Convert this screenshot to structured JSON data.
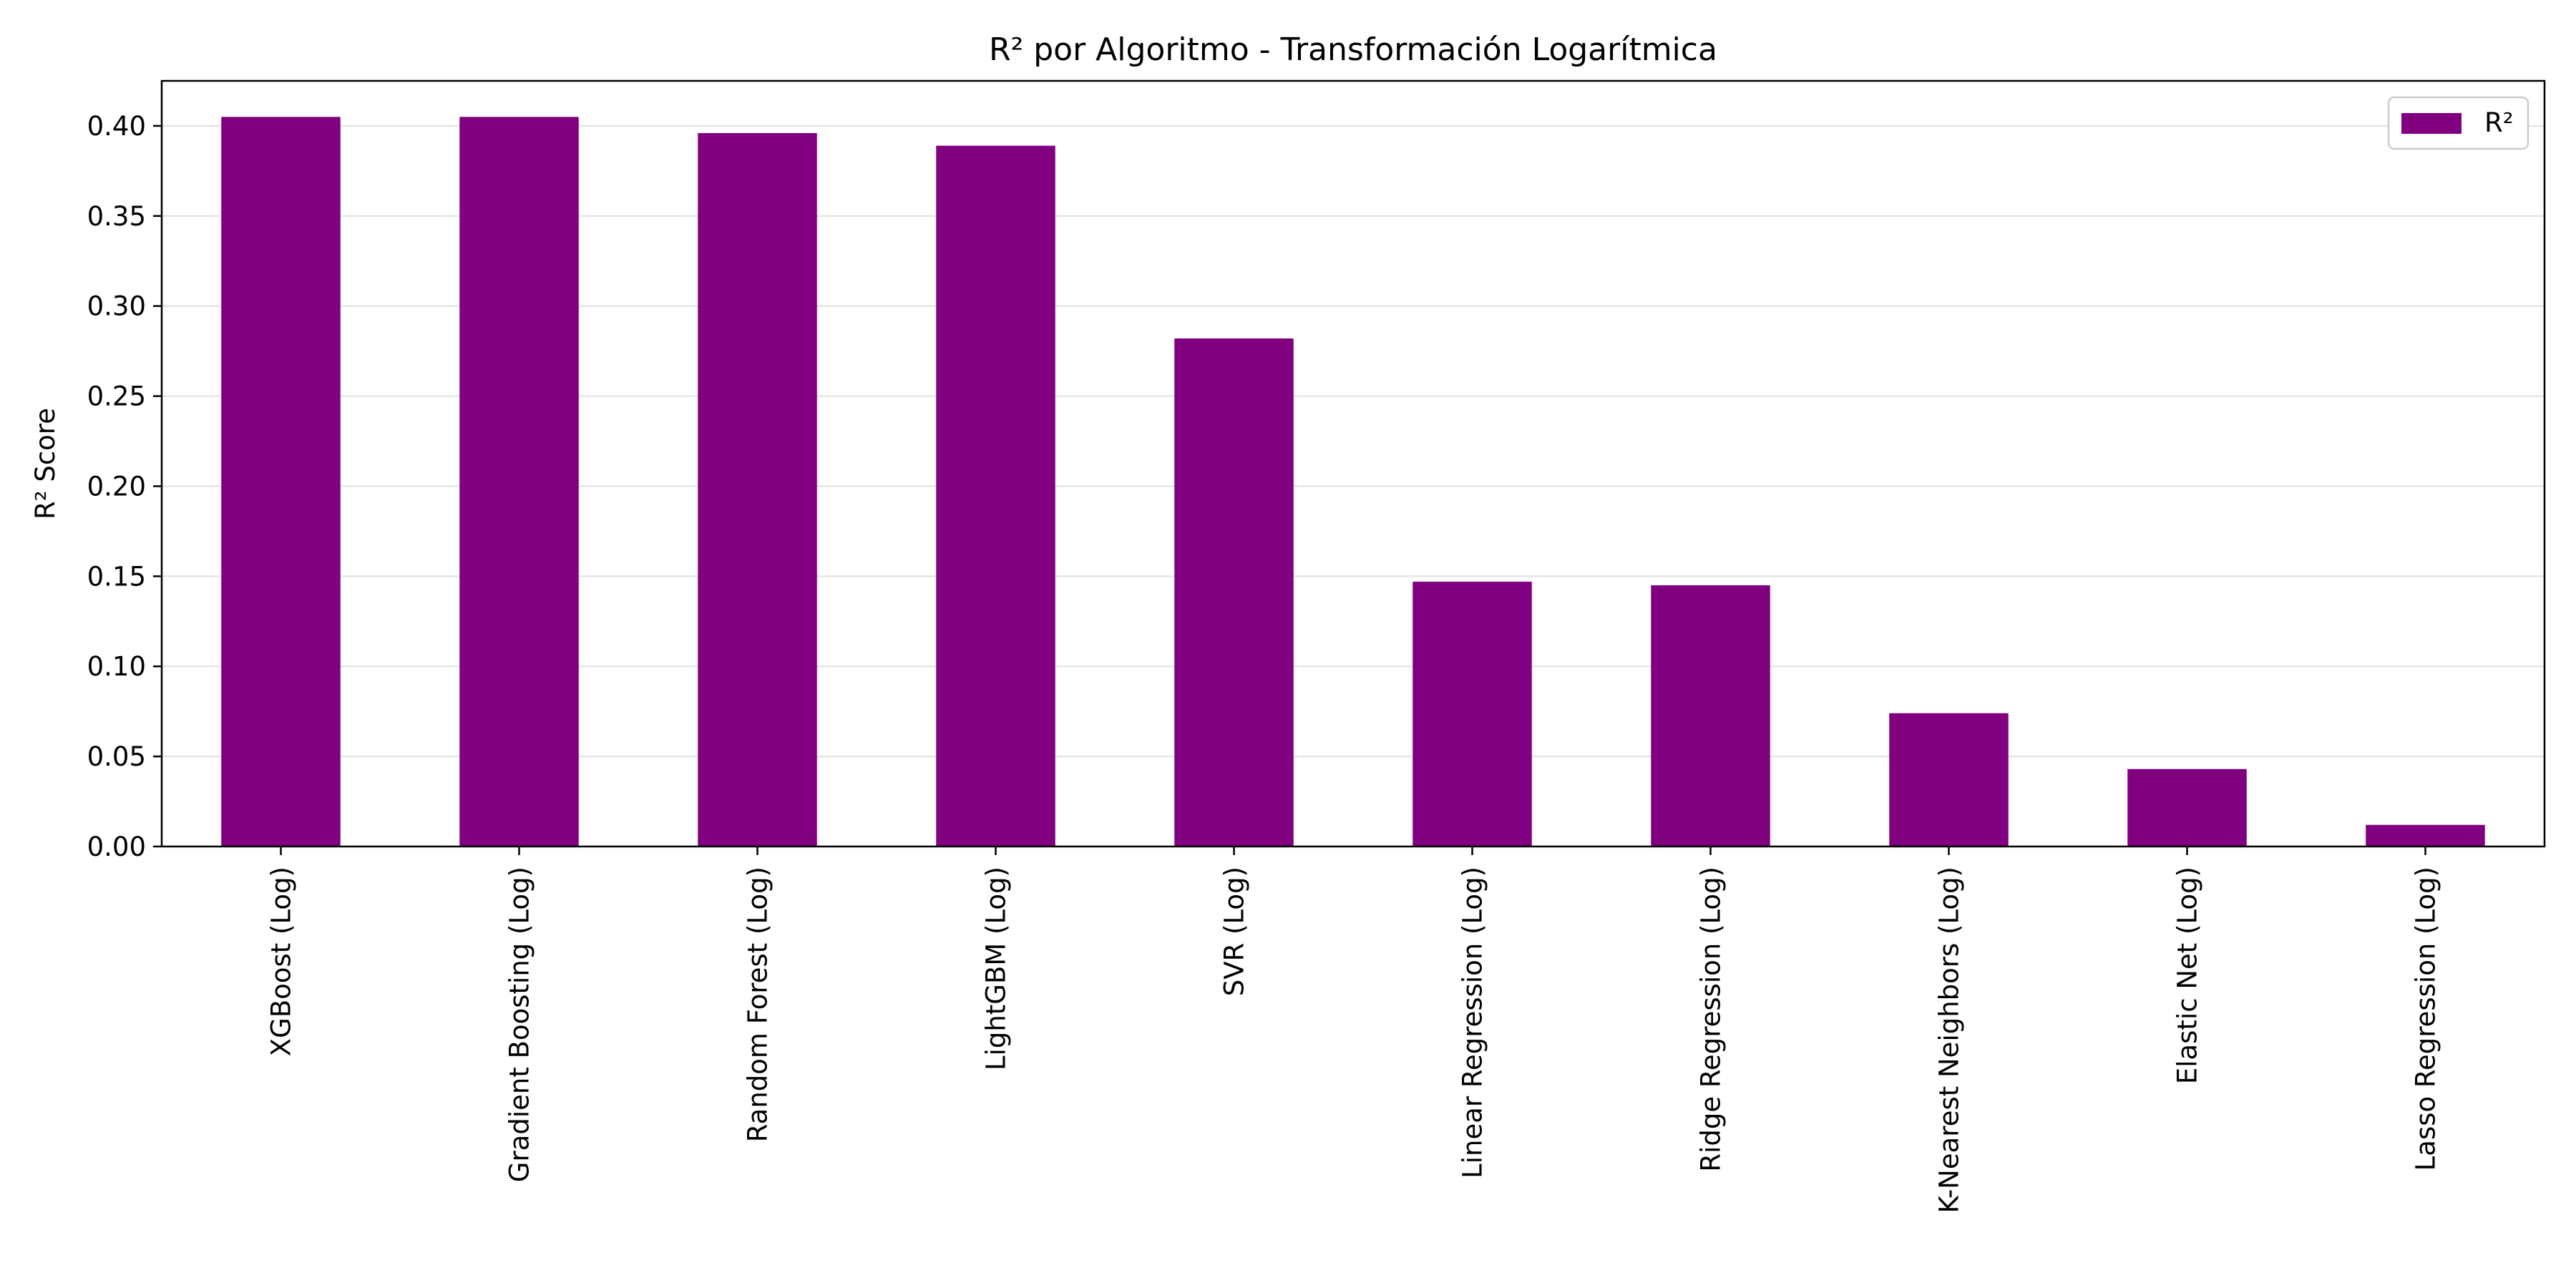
{
  "chart_data": {
    "type": "bar",
    "title": "R² por Algoritmo - Transformación Logarítmica",
    "xlabel": "",
    "ylabel": "R² Score",
    "categories": [
      "XGBoost (Log)",
      "Gradient Boosting (Log)",
      "Random Forest (Log)",
      "LightGBM (Log)",
      "SVR (Log)",
      "Linear Regression (Log)",
      "Ridge Regression (Log)",
      "K-Nearest Neighbors (Log)",
      "Elastic Net (Log)",
      "Lasso Regression (Log)"
    ],
    "series": [
      {
        "name": "R²",
        "color": "#800080",
        "values": [
          0.405,
          0.405,
          0.396,
          0.389,
          0.282,
          0.147,
          0.145,
          0.074,
          0.043,
          0.012
        ]
      }
    ],
    "ylim": [
      0,
      0.425
    ],
    "yticks": [
      "0.00",
      "0.05",
      "0.10",
      "0.15",
      "0.20",
      "0.25",
      "0.30",
      "0.35",
      "0.40"
    ],
    "grid": "horizontal",
    "legend": {
      "position": "top-right"
    }
  }
}
